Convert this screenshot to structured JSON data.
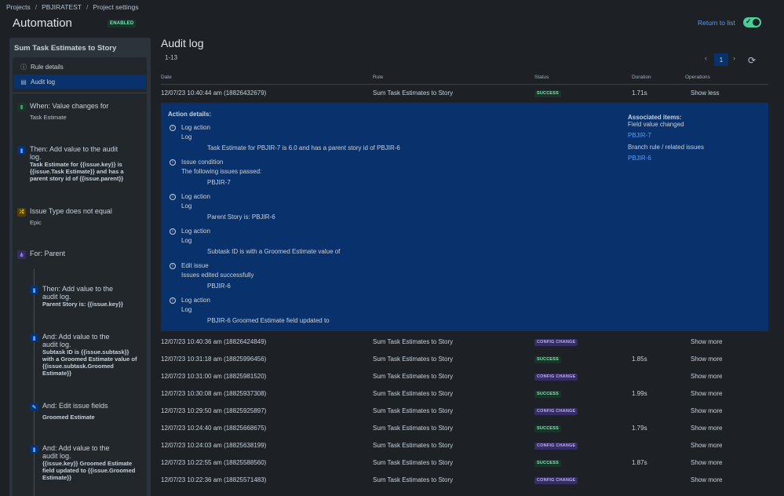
{
  "breadcrumbs": [
    "Projects",
    "PBJIRATEST",
    "Project settings"
  ],
  "page_title": "Automation",
  "enabled_badge": "ENABLED",
  "return_link": "Return to list",
  "toggle_on": true,
  "rule": {
    "title": "Sum Task Estimates to Story",
    "nav": [
      {
        "label": "Rule details",
        "icon": "info-icon"
      },
      {
        "label": "Audit log",
        "icon": "document-icon"
      }
    ],
    "steps": {
      "trigger_head": "When: Value changes for",
      "trigger_sub": "Task Estimate",
      "action1_head1": "Then: Add value to the audit",
      "action1_head2": "log.",
      "action1_b1": "Task Estimate for {{issue.key}} is",
      "action1_b2": "{{issue.Task Estimate}} and has a",
      "action1_b3": "parent story id of {{issue.parent}}",
      "cond_head": "Issue Type does not equal",
      "cond_sub": "Epic",
      "branch_head": "For: Parent",
      "b_action1_h1": "Then: Add value to the",
      "b_action1_h2": "audit log.",
      "b_action1_b1": "Parent Story is: {{issue.key}}",
      "b_action2_h1": "And: Add value to the",
      "b_action2_h2": "audit log.",
      "b_action2_b1": "Subtask ID is {{issue.subtask}}",
      "b_action2_b2": "with a Groomed Estimate value of",
      "b_action2_b3": "{{issue.subtask.Groomed",
      "b_action2_b4": "Estimate}}",
      "b_edit_h": "And: Edit issue fields",
      "b_edit_b": "Groomed Estimate",
      "b_action3_h1": "And: Add value to the",
      "b_action3_h2": "audit log.",
      "b_action3_b1": "{{issue.key}} Groomed Estimate",
      "b_action3_b2": "field updated to {{issue.Groomed",
      "b_action3_b3": "Estimate}}"
    }
  },
  "audit": {
    "title": "Audit log",
    "range": "1-13",
    "current_page": "1",
    "columns": [
      "Date",
      "Rule",
      "Status",
      "Duration",
      "Operations"
    ],
    "expanded_row": {
      "date": "12/07/23 10:40:44 am (18826432679)",
      "rule": "Sum Task Estimates to Story",
      "status": "SUCCESS",
      "duration": "1.71s",
      "op": "Show less"
    },
    "details": {
      "heading": "Action details:",
      "items": [
        {
          "title": "Log action",
          "sub": "Log",
          "detail": "Task Estimate for PBJIR-7 is 6.0 and has a parent story id of PBJIR-6"
        },
        {
          "title": "Issue condition",
          "sub": "The following issues passed:",
          "detail": "PBJIR-7"
        },
        {
          "title": "Log action",
          "sub": "Log",
          "detail": "Parent Story is: PBJIR-6"
        },
        {
          "title": "Log action",
          "sub": "Log",
          "detail": "Subtask ID is with a Groomed Estimate value of"
        },
        {
          "title": "Edit issue",
          "sub": "Issues edited successfully",
          "detail": "PBJIR-6"
        },
        {
          "title": "Log action",
          "sub": "Log",
          "detail": "PBJIR-6 Groomed Estimate field updated to"
        }
      ],
      "assoc_heading": "Associated items:",
      "assoc_sub1": "Field value changed",
      "assoc_link1": "PBJIR-7",
      "assoc_sub2": "Branch rule / related issues",
      "assoc_link2": "PBJIR-6"
    },
    "rows": [
      {
        "date": "12/07/23 10:40:36 am (18826424849)",
        "rule": "Sum Task Estimates to Story",
        "status": "CONFIG CHANGE",
        "duration": "",
        "op": "Show more"
      },
      {
        "date": "12/07/23 10:31:18 am (18825996456)",
        "rule": "Sum Task Estimates to Story",
        "status": "SUCCESS",
        "duration": "1.85s",
        "op": "Show more"
      },
      {
        "date": "12/07/23 10:31:00 am (18825981520)",
        "rule": "Sum Task Estimates to Story",
        "status": "CONFIG CHANGE",
        "duration": "",
        "op": "Show more"
      },
      {
        "date": "12/07/23 10:30:08 am (18825937308)",
        "rule": "Sum Task Estimates to Story",
        "status": "SUCCESS",
        "duration": "1.99s",
        "op": "Show more"
      },
      {
        "date": "12/07/23 10:29:50 am (18825925897)",
        "rule": "Sum Task Estimates to Story",
        "status": "CONFIG CHANGE",
        "duration": "",
        "op": "Show more"
      },
      {
        "date": "12/07/23 10:24:40 am (18825668675)",
        "rule": "Sum Task Estimates to Story",
        "status": "SUCCESS",
        "duration": "1.79s",
        "op": "Show more"
      },
      {
        "date": "12/07/23 10:24:03 am (18825638199)",
        "rule": "Sum Task Estimates to Story",
        "status": "CONFIG CHANGE",
        "duration": "",
        "op": "Show more"
      },
      {
        "date": "12/07/23 10:22:55 am (18825588560)",
        "rule": "Sum Task Estimates to Story",
        "status": "SUCCESS",
        "duration": "1.87s",
        "op": "Show more"
      },
      {
        "date": "12/07/23 10:22:36 am (18825571483)",
        "rule": "Sum Task Estimates to Story",
        "status": "CONFIG CHANGE",
        "duration": "",
        "op": "Show more"
      }
    ]
  },
  "colors": {
    "background": "#1d2125",
    "selected": "#09326c",
    "link": "#579dff",
    "success": "#7ee2b8",
    "config_change": "#b8acf6"
  }
}
